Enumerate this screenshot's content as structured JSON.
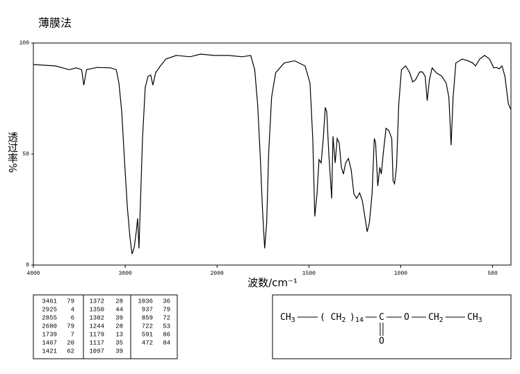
{
  "chart_data": {
    "type": "line",
    "title": "薄膜法",
    "xlabel": "波数/cm⁻¹",
    "ylabel": "透过率%",
    "xlim": [
      4000,
      400
    ],
    "ylim": [
      0,
      100
    ],
    "xticks": [
      4000,
      3000,
      2000,
      1500,
      1000,
      500
    ],
    "yticks": [
      0,
      50,
      100
    ],
    "x_scale_change_at": 2000,
    "x_scale_factor": 2,
    "color": "#000000",
    "x": [
      4000,
      3759,
      3609,
      3534,
      3474,
      3451,
      3421,
      3308,
      3158,
      3098,
      3068,
      3038,
      3008,
      2977,
      2947,
      2925,
      2902,
      2880,
      2865,
      2850,
      2812,
      2782,
      2752,
      2722,
      2699,
      2669,
      2617,
      2556,
      2444,
      2293,
      2180,
      2030,
      1939,
      1863,
      1817,
      1795,
      1779,
      1764,
      1753,
      1741,
      1730,
      1719,
      1703,
      1681,
      1635,
      1578,
      1521,
      1494,
      1479,
      1468,
      1456,
      1445,
      1433,
      1422,
      1411,
      1403,
      1392,
      1376,
      1369,
      1357,
      1346,
      1335,
      1323,
      1312,
      1300,
      1285,
      1270,
      1255,
      1240,
      1224,
      1209,
      1194,
      1183,
      1171,
      1156,
      1144,
      1137,
      1125,
      1114,
      1106,
      1095,
      1080,
      1065,
      1049,
      1042,
      1034,
      1023,
      1011,
      996,
      973,
      951,
      935,
      920,
      897,
      882,
      867,
      856,
      844,
      829,
      806,
      776,
      753,
      738,
      726,
      715,
      700,
      665,
      631,
      608,
      593,
      570,
      544,
      517,
      494,
      479,
      464,
      449,
      433,
      414,
      400
    ],
    "values": [
      90.3,
      89.7,
      88,
      88.8,
      88,
      81,
      88,
      89,
      88.8,
      88,
      82,
      69,
      47,
      26,
      12,
      5,
      8,
      15,
      21,
      7.5,
      57,
      80,
      85,
      85.6,
      81,
      86.6,
      89.7,
      92.8,
      94.4,
      93.8,
      95,
      94.4,
      94.4,
      93.8,
      94.4,
      88,
      72.5,
      47.5,
      25.6,
      7.5,
      19,
      50.6,
      75.6,
      86.6,
      91,
      92,
      89.7,
      82,
      57,
      21.9,
      32,
      47.5,
      46,
      57,
      71,
      69,
      50.6,
      30,
      58,
      46,
      57,
      55,
      44,
      41,
      46,
      48,
      43,
      32,
      30,
      32.5,
      29,
      21,
      15,
      19,
      32,
      57,
      55,
      35.6,
      44,
      41,
      50.6,
      61.6,
      60.6,
      57,
      38,
      36.6,
      44,
      72.5,
      88,
      89.7,
      86.6,
      82.5,
      83.4,
      87,
      87,
      85,
      74,
      83.4,
      88.8,
      86.6,
      85,
      82,
      75.6,
      54,
      75.6,
      91,
      92.8,
      91.9,
      91,
      89.7,
      92.8,
      94.4,
      92.8,
      88.8,
      89,
      88.4,
      89.7,
      85,
      72.5,
      70
    ]
  },
  "peak_table": {
    "rows": [
      [
        3461,
        79,
        1372,
        28,
        1036,
        36
      ],
      [
        2925,
        4,
        1350,
        44,
        937,
        79
      ],
      [
        2855,
        6,
        1302,
        39,
        859,
        72
      ],
      [
        2680,
        79,
        1244,
        28,
        722,
        53
      ],
      [
        1739,
        7,
        1179,
        13,
        591,
        86
      ],
      [
        1467,
        20,
        1117,
        35,
        472,
        84
      ],
      [
        1421,
        62,
        1097,
        39
      ]
    ]
  },
  "formula": {
    "chain": [
      {
        "text": "CH",
        "sub": "3"
      },
      {
        "text": "( CH",
        "sub": "2"
      },
      {
        "text": ")",
        "sub": "14"
      },
      {
        "text": "C"
      },
      {
        "text": "O"
      },
      {
        "text": "CH",
        "sub": "2"
      },
      {
        "text": "CH",
        "sub": "3"
      }
    ],
    "carbonyl_o": "O"
  }
}
